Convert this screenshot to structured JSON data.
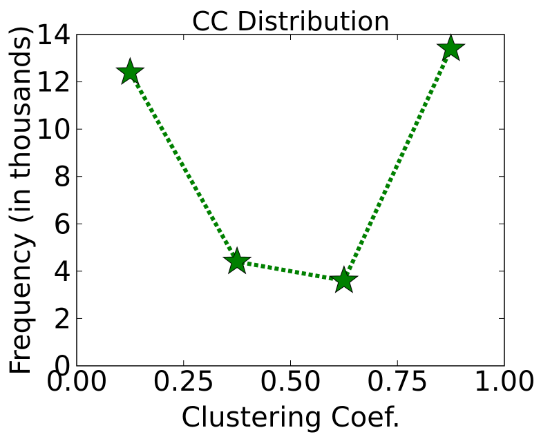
{
  "chart_data": {
    "type": "line",
    "title": "CC Distribution",
    "xlabel": "Clustering Coef.",
    "ylabel": "Frequency (in thousands)",
    "xlim": [
      0.0,
      1.0
    ],
    "ylim": [
      0,
      14
    ],
    "xticks": [
      0.0,
      0.25,
      0.5,
      0.75,
      1.0
    ],
    "xtick_labels": [
      "0.00",
      "0.25",
      "0.50",
      "0.75",
      "1.00"
    ],
    "yticks": [
      0,
      2,
      4,
      6,
      8,
      10,
      12,
      14
    ],
    "ytick_labels": [
      "0",
      "2",
      "4",
      "6",
      "8",
      "10",
      "12",
      "14"
    ],
    "grid": false,
    "legend": "none",
    "series": [
      {
        "x": [
          0.125,
          0.375,
          0.625,
          0.875
        ],
        "y": [
          12.4,
          4.4,
          3.6,
          13.4
        ],
        "color": "#008000",
        "line_style": "dotted",
        "marker": "star"
      }
    ]
  }
}
